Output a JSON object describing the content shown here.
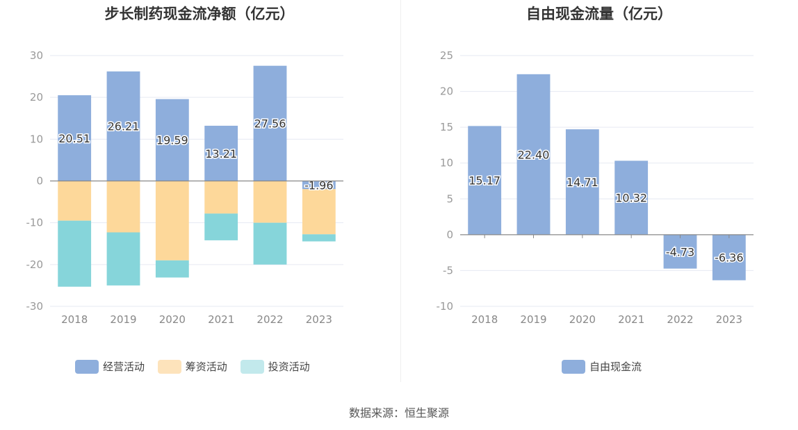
{
  "source": "数据来源：恒生聚源",
  "chart_data": [
    {
      "type": "bar",
      "stacked": true,
      "title": "步长制药现金流净额（亿元）",
      "categories": [
        "2018",
        "2019",
        "2020",
        "2021",
        "2022",
        "2023"
      ],
      "ylim": [
        -30,
        30
      ],
      "yticks": [
        30,
        20,
        10,
        0,
        -10,
        -20,
        -30
      ],
      "series": [
        {
          "name": "经营活动",
          "color": "#8eaedc",
          "values": [
            20.51,
            26.21,
            19.59,
            13.21,
            27.56,
            -1.96
          ]
        },
        {
          "name": "筹资活动",
          "color": "#fdd89a",
          "values": [
            -9.5,
            -12.3,
            -19.0,
            -7.8,
            -10.0,
            -10.8
          ]
        },
        {
          "name": "投资活动",
          "color": "#86d5da",
          "values": [
            -15.8,
            -12.7,
            -4.1,
            -6.4,
            -10.0,
            -1.7
          ]
        }
      ],
      "data_labels": [
        "20.51",
        "26.21",
        "19.59",
        "13.21",
        "27.56",
        "-1.96"
      ],
      "legend_swatch_colors": [
        "#8eaedc",
        "#fde3bb",
        "#c2e9ec"
      ]
    },
    {
      "type": "bar",
      "title": "自由现金流量（亿元）",
      "categories": [
        "2018",
        "2019",
        "2020",
        "2021",
        "2022",
        "2023"
      ],
      "ylim": [
        -10,
        25
      ],
      "yticks": [
        25,
        20,
        15,
        10,
        5,
        0,
        -5,
        -10
      ],
      "series": [
        {
          "name": "自由现金流",
          "color": "#8eaedc",
          "values": [
            15.17,
            22.4,
            14.71,
            10.32,
            -4.73,
            -6.36
          ]
        }
      ],
      "data_labels": [
        "15.17",
        "22.40",
        "14.71",
        "10.32",
        "-4.73",
        "-6.36"
      ],
      "legend_swatch_colors": [
        "#8eaedc"
      ]
    }
  ]
}
